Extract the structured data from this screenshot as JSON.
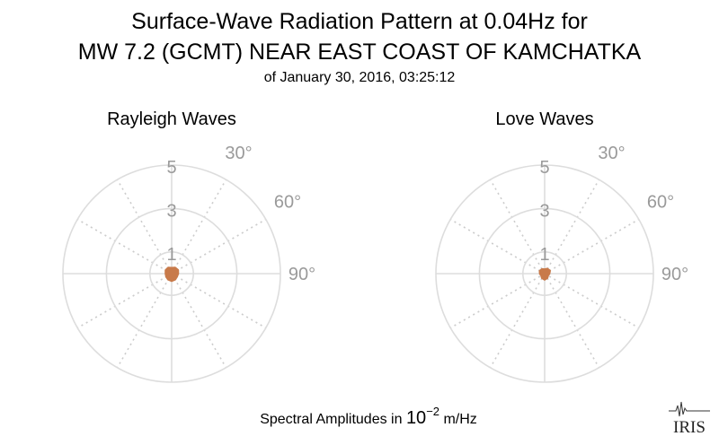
{
  "header": {
    "title_line1": "Surface-Wave Radiation Pattern at 0.04Hz for",
    "title_line2": "MW 7.2 (GCMT) NEAR EAST COAST OF KAMCHATKA",
    "subtitle": "of January 30, 2016, 03:25:12"
  },
  "footer": {
    "caption_prefix": "Spectral Amplitudes in ",
    "caption_base": "10",
    "caption_exp": "−2",
    "caption_suffix": " m/Hz",
    "logo_text": "IRIS"
  },
  "colors": {
    "grid": "#dddddd",
    "grid_dotted": "#cccccc",
    "tick_label": "#9a9a9a",
    "series": "#c87a4a",
    "text": "#000000"
  },
  "chart_data": [
    {
      "type": "polar",
      "title": "Rayleigh Waves",
      "radial_ticks": [
        "1",
        "3",
        "5"
      ],
      "radial_tick_values": [
        1,
        3,
        5
      ],
      "rlim": [
        0,
        5
      ],
      "angular_ticks": [
        "30°",
        "60°",
        "90°"
      ],
      "angular_tick_values": [
        30,
        60,
        90
      ],
      "angular_grid_step": 30,
      "grid": true,
      "series": [
        {
          "theta": [
            0,
            30,
            60,
            90,
            120,
            150,
            180,
            210,
            240,
            270,
            300,
            330,
            360
          ],
          "r": [
            0.25,
            0.3,
            0.32,
            0.28,
            0.26,
            0.3,
            0.32,
            0.3,
            0.27,
            0.26,
            0.3,
            0.3,
            0.25
          ]
        }
      ]
    },
    {
      "type": "polar",
      "title": "Love Waves",
      "radial_ticks": [
        "1",
        "3",
        "5"
      ],
      "radial_tick_values": [
        1,
        3,
        5
      ],
      "rlim": [
        0,
        5
      ],
      "angular_ticks": [
        "30°",
        "60°",
        "90°"
      ],
      "angular_tick_values": [
        30,
        60,
        90
      ],
      "angular_grid_step": 30,
      "grid": true,
      "series": [
        {
          "theta": [
            0,
            30,
            60,
            90,
            120,
            150,
            180,
            210,
            240,
            270,
            300,
            330,
            360
          ],
          "r": [
            0.18,
            0.24,
            0.26,
            0.2,
            0.16,
            0.22,
            0.26,
            0.22,
            0.16,
            0.2,
            0.24,
            0.22,
            0.18
          ]
        }
      ]
    }
  ]
}
